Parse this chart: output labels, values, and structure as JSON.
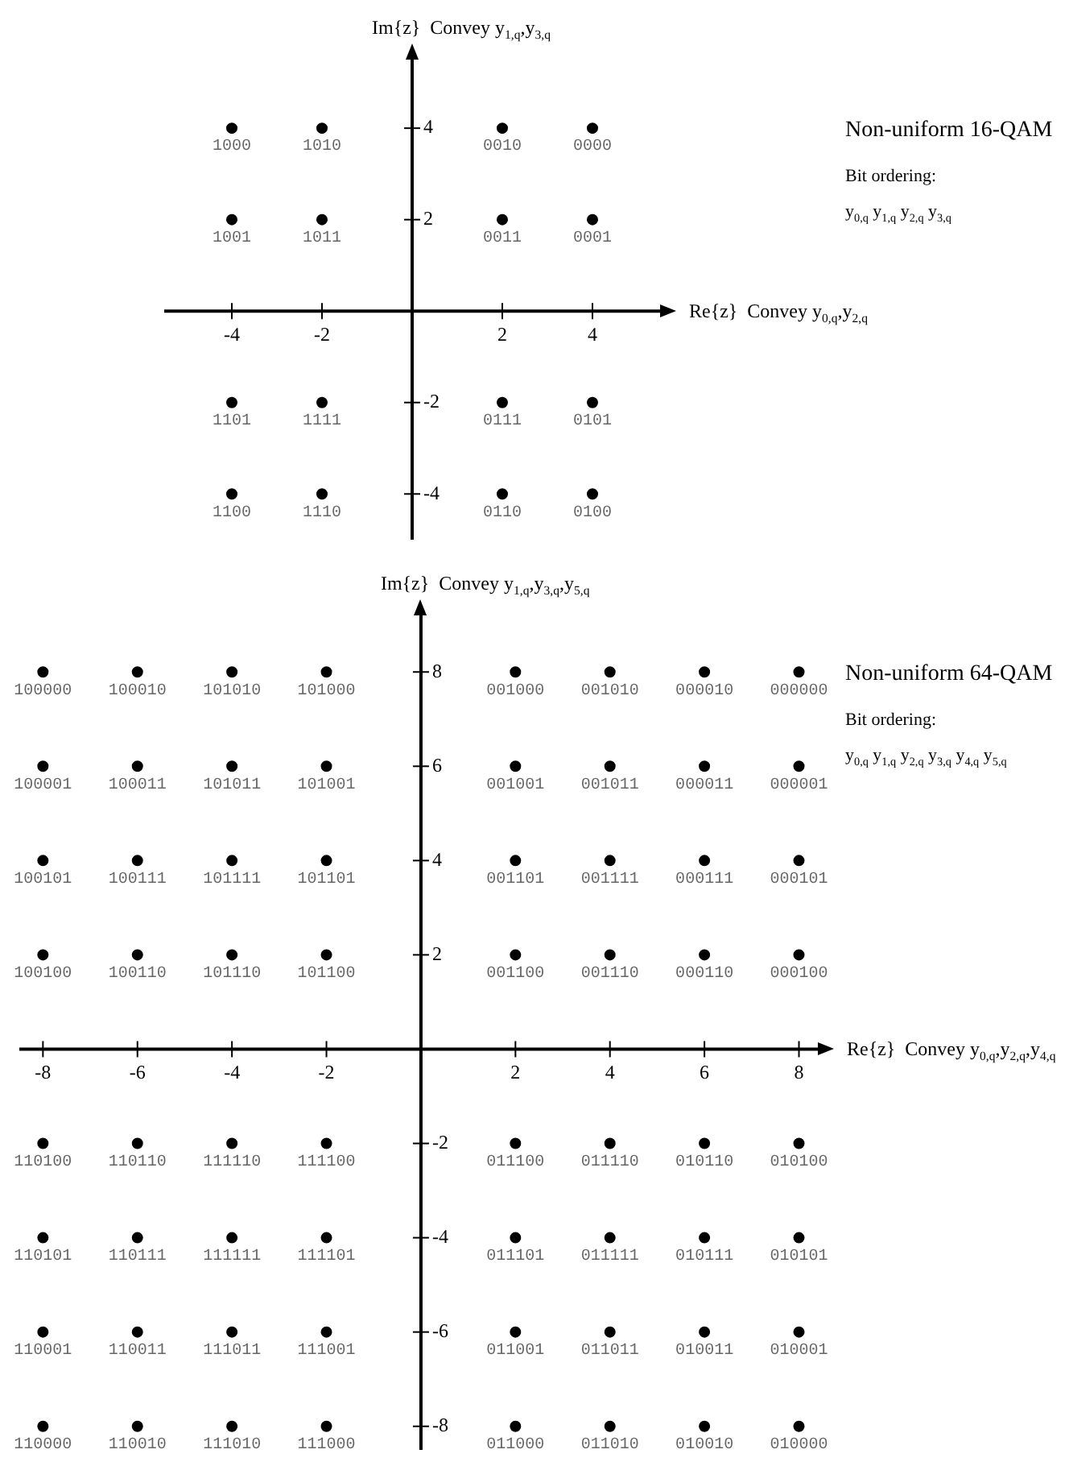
{
  "chart_data": [
    {
      "type": "scatter",
      "xlabel": "Re{z}  Convey y$_{0,q}$,y$_{2,q}$",
      "ylabel": "Im{z}  Convey y$_{1,q}$,y$_{3,q}$",
      "annotations": [
        "Non-uniform 16-QAM",
        "Bit ordering:",
        "y$_{0,q}$ y$_{1,q}$ y$_{2,q}$ y$_{3,q}$",
        {
          "text": "1000",
          "x": -4,
          "y": 4
        },
        {
          "text": "1010",
          "x": -2,
          "y": 4
        },
        {
          "text": "0010",
          "x": 2,
          "y": 4
        },
        {
          "text": "0000",
          "x": 4,
          "y": 4
        },
        {
          "text": "1001",
          "x": -4,
          "y": 2
        },
        {
          "text": "1011",
          "x": -2,
          "y": 2
        },
        {
          "text": "0011",
          "x": 2,
          "y": 2
        },
        {
          "text": "0001",
          "x": 4,
          "y": 2
        },
        {
          "text": "1101",
          "x": -4,
          "y": -2
        },
        {
          "text": "1111",
          "x": -2,
          "y": -2
        },
        {
          "text": "0111",
          "x": 2,
          "y": -2
        },
        {
          "text": "0101",
          "x": 4,
          "y": -2
        },
        {
          "text": "1100",
          "x": -4,
          "y": -4
        },
        {
          "text": "1110",
          "x": -2,
          "y": -4
        },
        {
          "text": "0110",
          "x": 2,
          "y": -4
        },
        {
          "text": "0100",
          "x": 4,
          "y": -4
        }
      ],
      "color": "#000000",
      "marker": "circle",
      "legend": false,
      "xlim": [
        -5.5,
        5.5
      ],
      "ylim": [
        -5,
        5.5
      ],
      "xticks": [
        -4,
        -2,
        2,
        4
      ],
      "yticks": [
        -4,
        -2,
        2,
        4
      ],
      "x": [
        -4,
        -2,
        2,
        4,
        -4,
        -2,
        2,
        4,
        -4,
        -2,
        2,
        4,
        -4,
        -2,
        2,
        4
      ],
      "values": [
        4,
        4,
        4,
        4,
        2,
        2,
        2,
        2,
        -2,
        -2,
        -2,
        -2,
        -4,
        -4,
        -4,
        -4
      ]
    },
    {
      "type": "scatter",
      "xlabel": "Re{z}  Convey y$_{0,q}$,y$_{2,q}$,y$_{4,q}$",
      "ylabel": "Im{z}  Convey y$_{1,q}$,y$_{3,q}$,y$_{5,q}$",
      "annotations": [
        "Non-uniform 64-QAM",
        "Bit ordering:",
        "y$_{0,q}$ y$_{1,q}$ y$_{2,q}$ y$_{3,q}$ y$_{4,q}$ y$_{5,q}$",
        {
          "text": "100000",
          "x": -8,
          "y": 8
        },
        {
          "text": "100010",
          "x": -6,
          "y": 8
        },
        {
          "text": "101010",
          "x": -4,
          "y": 8
        },
        {
          "text": "101000",
          "x": -2,
          "y": 8
        },
        {
          "text": "001000",
          "x": 2,
          "y": 8
        },
        {
          "text": "001010",
          "x": 4,
          "y": 8
        },
        {
          "text": "000010",
          "x": 6,
          "y": 8
        },
        {
          "text": "000000",
          "x": 8,
          "y": 8
        },
        {
          "text": "100001",
          "x": -8,
          "y": 6
        },
        {
          "text": "100011",
          "x": -6,
          "y": 6
        },
        {
          "text": "101011",
          "x": -4,
          "y": 6
        },
        {
          "text": "101001",
          "x": -2,
          "y": 6
        },
        {
          "text": "001001",
          "x": 2,
          "y": 6
        },
        {
          "text": "001011",
          "x": 4,
          "y": 6
        },
        {
          "text": "000011",
          "x": 6,
          "y": 6
        },
        {
          "text": "000001",
          "x": 8,
          "y": 6
        },
        {
          "text": "100101",
          "x": -8,
          "y": 4
        },
        {
          "text": "100111",
          "x": -6,
          "y": 4
        },
        {
          "text": "101111",
          "x": -4,
          "y": 4
        },
        {
          "text": "101101",
          "x": -2,
          "y": 4
        },
        {
          "text": "001101",
          "x": 2,
          "y": 4
        },
        {
          "text": "001111",
          "x": 4,
          "y": 4
        },
        {
          "text": "000111",
          "x": 6,
          "y": 4
        },
        {
          "text": "000101",
          "x": 8,
          "y": 4
        },
        {
          "text": "100100",
          "x": -8,
          "y": 2
        },
        {
          "text": "100110",
          "x": -6,
          "y": 2
        },
        {
          "text": "101110",
          "x": -4,
          "y": 2
        },
        {
          "text": "101100",
          "x": -2,
          "y": 2
        },
        {
          "text": "001100",
          "x": 2,
          "y": 2
        },
        {
          "text": "001110",
          "x": 4,
          "y": 2
        },
        {
          "text": "000110",
          "x": 6,
          "y": 2
        },
        {
          "text": "000100",
          "x": 8,
          "y": 2
        },
        {
          "text": "110100",
          "x": -8,
          "y": -2
        },
        {
          "text": "110110",
          "x": -6,
          "y": -2
        },
        {
          "text": "111110",
          "x": -4,
          "y": -2
        },
        {
          "text": "111100",
          "x": -2,
          "y": -2
        },
        {
          "text": "011100",
          "x": 2,
          "y": -2
        },
        {
          "text": "011110",
          "x": 4,
          "y": -2
        },
        {
          "text": "010110",
          "x": 6,
          "y": -2
        },
        {
          "text": "010100",
          "x": 8,
          "y": -2
        },
        {
          "text": "110101",
          "x": -8,
          "y": -4
        },
        {
          "text": "110111",
          "x": -6,
          "y": -4
        },
        {
          "text": "111111",
          "x": -4,
          "y": -4
        },
        {
          "text": "111101",
          "x": -2,
          "y": -4
        },
        {
          "text": "011101",
          "x": 2,
          "y": -4
        },
        {
          "text": "011111",
          "x": 4,
          "y": -4
        },
        {
          "text": "010111",
          "x": 6,
          "y": -4
        },
        {
          "text": "010101",
          "x": 8,
          "y": -4
        },
        {
          "text": "110001",
          "x": -8,
          "y": -6
        },
        {
          "text": "110011",
          "x": -6,
          "y": -6
        },
        {
          "text": "111011",
          "x": -4,
          "y": -6
        },
        {
          "text": "111001",
          "x": -2,
          "y": -6
        },
        {
          "text": "011001",
          "x": 2,
          "y": -6
        },
        {
          "text": "011011",
          "x": 4,
          "y": -6
        },
        {
          "text": "010011",
          "x": 6,
          "y": -6
        },
        {
          "text": "010001",
          "x": 8,
          "y": -6
        },
        {
          "text": "110000",
          "x": -8,
          "y": -8
        },
        {
          "text": "110010",
          "x": -6,
          "y": -8
        },
        {
          "text": "111010",
          "x": -4,
          "y": -8
        },
        {
          "text": "111000",
          "x": -2,
          "y": -8
        },
        {
          "text": "011000",
          "x": 2,
          "y": -8
        },
        {
          "text": "011010",
          "x": 4,
          "y": -8
        },
        {
          "text": "010010",
          "x": 6,
          "y": -8
        },
        {
          "text": "010000",
          "x": 8,
          "y": -8
        }
      ],
      "color": "#000000",
      "marker": "circle",
      "legend": false,
      "xlim": [
        -8.5,
        8.4
      ],
      "ylim": [
        -8.5,
        9.2
      ],
      "xticks": [
        -8,
        -6,
        -4,
        -2,
        2,
        4,
        6,
        8
      ],
      "yticks": [
        -8,
        -6,
        -4,
        -2,
        2,
        4,
        6,
        8
      ],
      "x": [
        -8,
        -6,
        -4,
        -2,
        2,
        4,
        6,
        8,
        -8,
        -6,
        -4,
        -2,
        2,
        4,
        6,
        8,
        -8,
        -6,
        -4,
        -2,
        2,
        4,
        6,
        8,
        -8,
        -6,
        -4,
        -2,
        2,
        4,
        6,
        8,
        -8,
        -6,
        -4,
        -2,
        2,
        4,
        6,
        8,
        -8,
        -6,
        -4,
        -2,
        2,
        4,
        6,
        8,
        -8,
        -6,
        -4,
        -2,
        2,
        4,
        6,
        8,
        -8,
        -6,
        -4,
        -2,
        2,
        4,
        6,
        8
      ],
      "values": [
        8,
        8,
        8,
        8,
        8,
        8,
        8,
        8,
        6,
        6,
        6,
        6,
        6,
        6,
        6,
        6,
        4,
        4,
        4,
        4,
        4,
        4,
        4,
        4,
        2,
        2,
        2,
        2,
        2,
        2,
        2,
        2,
        -2,
        -2,
        -2,
        -2,
        -2,
        -2,
        -2,
        -2,
        -4,
        -4,
        -4,
        -4,
        -4,
        -4,
        -4,
        -4,
        -6,
        -6,
        -6,
        -6,
        -6,
        -6,
        -6,
        -6,
        -8,
        -8,
        -8,
        -8,
        -8,
        -8,
        -8,
        -8
      ]
    }
  ]
}
